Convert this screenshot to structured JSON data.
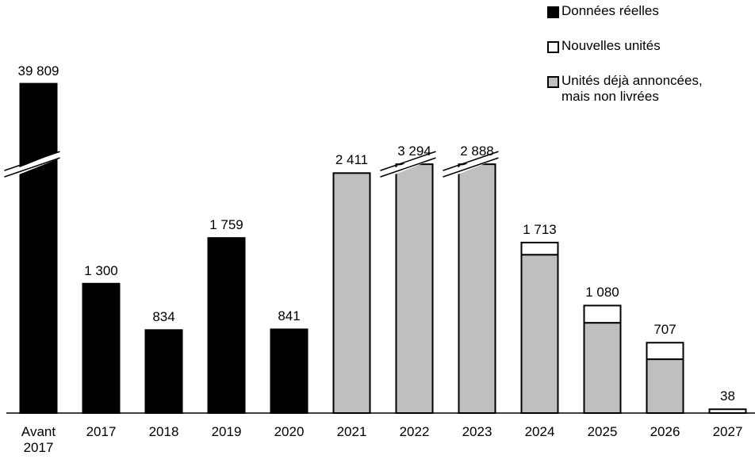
{
  "chart_data": {
    "type": "stacked_bar",
    "categories": [
      "Avant 2017",
      "2017",
      "2018",
      "2019",
      "2020",
      "2021",
      "2022",
      "2023",
      "2024",
      "2025",
      "2026",
      "2027"
    ],
    "series": [
      {
        "name": "Données réelles",
        "color": "#000000",
        "values": [
          39809,
          1300,
          834,
          1759,
          841,
          null,
          null,
          30,
          null,
          null,
          null,
          null
        ]
      },
      {
        "name": "Nouvelles unités",
        "color": "#ffffff",
        "values": [
          null,
          null,
          null,
          null,
          null,
          null,
          null,
          null,
          122,
          173,
          166,
          38
        ]
      },
      {
        "name": "Unités déjà annoncées, mais non livrées",
        "color": "#bfbfbf",
        "values": [
          null,
          null,
          null,
          null,
          null,
          2411,
          3294,
          2858,
          1591,
          907,
          541,
          null
        ]
      }
    ],
    "totals": [
      39809,
      1300,
      834,
      1759,
      841,
      2411,
      3294,
      2888,
      1713,
      1080,
      707,
      38
    ],
    "total_labels": [
      "39 809",
      "1 300",
      "834",
      "1 759",
      "841",
      "2 411",
      "3 294",
      "2 888",
      "1 713",
      "1 080",
      "707",
      "38"
    ],
    "ylim": [
      0,
      4150
    ],
    "y_break": [
      2500,
      39000
    ],
    "legend": "top-right"
  }
}
